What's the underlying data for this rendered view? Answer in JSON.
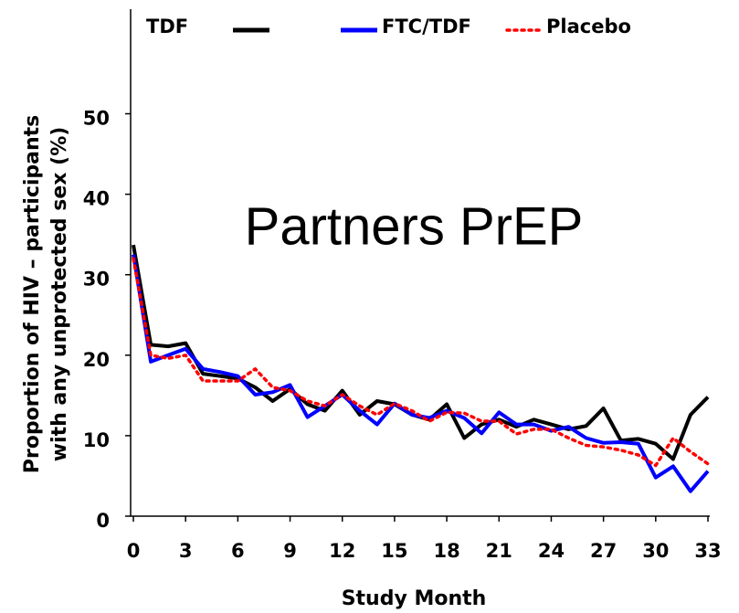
{
  "chart_data": {
    "type": "line",
    "annotation": "Partners PrEP",
    "x_label": "Study Month",
    "y_label": [
      "Proportion of HIV – participants",
      "with any unprotected sex (%)"
    ],
    "x": [
      0,
      1,
      2,
      3,
      4,
      5,
      6,
      7,
      8,
      9,
      10,
      11,
      12,
      13,
      14,
      15,
      16,
      17,
      18,
      19,
      20,
      21,
      22,
      23,
      24,
      25,
      26,
      27,
      28,
      29,
      30,
      31,
      32,
      33
    ],
    "xlim": [
      0,
      33
    ],
    "xticks": [
      0,
      3,
      6,
      9,
      12,
      15,
      18,
      21,
      24,
      27,
      30,
      33
    ],
    "ylim": [
      0,
      63
    ],
    "yticks": [
      0,
      10,
      20,
      30,
      40,
      50
    ],
    "series": [
      {
        "name": "TDF",
        "color": "#000000",
        "dash": "solid",
        "values": [
          33.7,
          21.3,
          21.1,
          21.5,
          17.7,
          17.4,
          17.1,
          16.0,
          14.3,
          15.8,
          13.9,
          13.1,
          15.6,
          12.6,
          14.3,
          13.9,
          12.6,
          12.0,
          13.9,
          9.7,
          11.4,
          12.0,
          11.1,
          12.0,
          11.4,
          10.8,
          11.2,
          13.4,
          9.4,
          9.6,
          9.0,
          7.1,
          12.6,
          14.8
        ]
      },
      {
        "name": "FTC/TDF",
        "color": "#0000ff",
        "dash": "solid",
        "values": [
          32.5,
          19.2,
          20.0,
          20.8,
          18.3,
          17.9,
          17.4,
          15.1,
          15.4,
          16.3,
          12.3,
          13.7,
          15.1,
          13.1,
          11.4,
          14.0,
          12.6,
          12.2,
          13.1,
          12.2,
          10.3,
          12.9,
          11.4,
          11.4,
          10.6,
          11.1,
          9.7,
          9.1,
          9.2,
          9.0,
          4.8,
          6.2,
          3.1,
          5.6
        ]
      },
      {
        "name": "Placebo",
        "color": "#ff0000",
        "dash": "dotted",
        "values": [
          32.0,
          20.0,
          19.6,
          20.0,
          16.8,
          16.8,
          16.8,
          18.3,
          16.0,
          15.6,
          14.3,
          13.7,
          15.1,
          13.7,
          12.6,
          14.0,
          13.1,
          11.8,
          12.9,
          12.8,
          11.8,
          11.8,
          10.2,
          10.8,
          10.8,
          9.7,
          8.8,
          8.6,
          8.2,
          7.6,
          6.3,
          9.7,
          8.0,
          6.5
        ]
      }
    ]
  }
}
